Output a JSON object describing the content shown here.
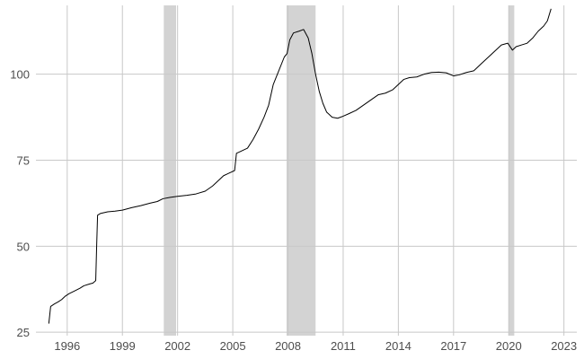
{
  "chart_data": {
    "type": "line",
    "title": "",
    "xlabel": "",
    "ylabel": "",
    "xlim": [
      1994.3,
      2023.7
    ],
    "ylim": [
      24,
      120
    ],
    "x_ticks": [
      1996,
      1999,
      2002,
      2005,
      2008,
      2011,
      2014,
      2017,
      2020,
      2023
    ],
    "x_tick_labels": [
      "1996",
      "1999",
      "2002",
      "2005",
      "2008",
      "2011",
      "2014",
      "2017",
      "2020",
      "2023"
    ],
    "y_ticks": [
      25,
      50,
      75,
      100
    ],
    "y_tick_labels": [
      "25",
      "50",
      "75",
      "100"
    ],
    "grid": true,
    "legend": "none",
    "colors": {
      "line": "#000000",
      "shade": "#d3d3d3",
      "grid": "#c8c8c8"
    },
    "shaded_periods": [
      {
        "start": 2001.25,
        "end": 2001.92
      },
      {
        "start": 2007.92,
        "end": 2009.5
      },
      {
        "start": 2020.0,
        "end": 2020.3
      }
    ],
    "series": [
      {
        "values": [
          [
            1995.0,
            27.5
          ],
          [
            1995.1,
            32.5
          ],
          [
            1995.3,
            33.2
          ],
          [
            1995.5,
            33.8
          ],
          [
            1995.7,
            34.5
          ],
          [
            1995.9,
            35.5
          ],
          [
            1996.1,
            36.2
          ],
          [
            1996.4,
            37.0
          ],
          [
            1996.7,
            37.8
          ],
          [
            1996.9,
            38.5
          ],
          [
            1997.2,
            39.0
          ],
          [
            1997.4,
            39.3
          ],
          [
            1997.55,
            40.0
          ],
          [
            1997.6,
            50.0
          ],
          [
            1997.65,
            59.0
          ],
          [
            1997.8,
            59.5
          ],
          [
            1998.2,
            60.0
          ],
          [
            1998.6,
            60.2
          ],
          [
            1999.0,
            60.5
          ],
          [
            1999.5,
            61.2
          ],
          [
            2000.0,
            61.8
          ],
          [
            2000.5,
            62.5
          ],
          [
            2000.9,
            63.0
          ],
          [
            2001.2,
            63.8
          ],
          [
            2001.6,
            64.2
          ],
          [
            2002.0,
            64.5
          ],
          [
            2002.5,
            64.8
          ],
          [
            2003.0,
            65.2
          ],
          [
            2003.5,
            66.0
          ],
          [
            2003.9,
            67.5
          ],
          [
            2004.2,
            69.0
          ],
          [
            2004.5,
            70.5
          ],
          [
            2004.9,
            71.5
          ],
          [
            2005.1,
            72.0
          ],
          [
            2005.2,
            77.0
          ],
          [
            2005.4,
            77.5
          ],
          [
            2005.8,
            78.5
          ],
          [
            2006.1,
            81.0
          ],
          [
            2006.4,
            84.0
          ],
          [
            2006.7,
            87.5
          ],
          [
            2006.95,
            91.0
          ],
          [
            2007.2,
            97.0
          ],
          [
            2007.5,
            101.0
          ],
          [
            2007.8,
            105.0
          ],
          [
            2007.95,
            106.0
          ],
          [
            2008.1,
            110.0
          ],
          [
            2008.3,
            112.0
          ],
          [
            2008.6,
            112.5
          ],
          [
            2008.85,
            113.0
          ],
          [
            2009.1,
            110.5
          ],
          [
            2009.3,
            106.0
          ],
          [
            2009.5,
            100.0
          ],
          [
            2009.7,
            95.0
          ],
          [
            2009.9,
            91.5
          ],
          [
            2010.1,
            89.0
          ],
          [
            2010.4,
            87.5
          ],
          [
            2010.7,
            87.2
          ],
          [
            2011.0,
            87.8
          ],
          [
            2011.3,
            88.5
          ],
          [
            2011.7,
            89.5
          ],
          [
            2012.1,
            91.0
          ],
          [
            2012.5,
            92.5
          ],
          [
            2012.9,
            94.0
          ],
          [
            2013.3,
            94.5
          ],
          [
            2013.7,
            95.5
          ],
          [
            2014.0,
            97.0
          ],
          [
            2014.3,
            98.5
          ],
          [
            2014.6,
            99.0
          ],
          [
            2015.0,
            99.2
          ],
          [
            2015.4,
            100.0
          ],
          [
            2015.8,
            100.5
          ],
          [
            2016.2,
            100.6
          ],
          [
            2016.6,
            100.4
          ],
          [
            2017.0,
            99.5
          ],
          [
            2017.3,
            99.8
          ],
          [
            2017.7,
            100.5
          ],
          [
            2018.1,
            101.0
          ],
          [
            2018.5,
            103.0
          ],
          [
            2018.9,
            105.0
          ],
          [
            2019.3,
            107.0
          ],
          [
            2019.6,
            108.5
          ],
          [
            2019.95,
            109.0
          ],
          [
            2020.2,
            107.0
          ],
          [
            2020.4,
            108.0
          ],
          [
            2020.7,
            108.5
          ],
          [
            2021.0,
            109.0
          ],
          [
            2021.3,
            110.5
          ],
          [
            2021.6,
            112.5
          ],
          [
            2021.9,
            114.0
          ],
          [
            2022.1,
            115.5
          ],
          [
            2022.3,
            119.0
          ]
        ]
      }
    ]
  }
}
